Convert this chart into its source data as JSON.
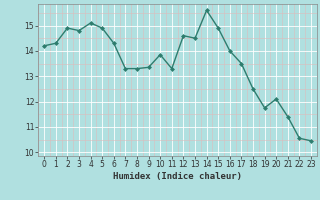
{
  "x": [
    0,
    1,
    2,
    3,
    4,
    5,
    6,
    7,
    8,
    9,
    10,
    11,
    12,
    13,
    14,
    15,
    16,
    17,
    18,
    19,
    20,
    21,
    22,
    23
  ],
  "y": [
    14.2,
    14.3,
    14.9,
    14.8,
    15.1,
    14.9,
    14.3,
    13.3,
    13.3,
    13.35,
    13.85,
    13.3,
    14.6,
    14.5,
    15.6,
    14.9,
    14.0,
    13.5,
    12.5,
    11.75,
    12.1,
    11.4,
    10.55,
    10.45
  ],
  "line_color": "#2e7d6e",
  "marker": "D",
  "marker_size": 2.0,
  "bg_color": "#b0e0e0",
  "grid_major_color": "#ffffff",
  "grid_minor_color": "#ccdddd",
  "xlabel": "Humidex (Indice chaleur)",
  "xlim": [
    -0.5,
    23.5
  ],
  "ylim": [
    9.85,
    15.85
  ],
  "yticks": [
    10,
    11,
    12,
    13,
    14,
    15
  ],
  "xticks": [
    0,
    1,
    2,
    3,
    4,
    5,
    6,
    7,
    8,
    9,
    10,
    11,
    12,
    13,
    14,
    15,
    16,
    17,
    18,
    19,
    20,
    21,
    22,
    23
  ],
  "linewidth": 1.0,
  "tick_fontsize": 5.5,
  "xlabel_fontsize": 6.5,
  "spine_color": "#888888"
}
